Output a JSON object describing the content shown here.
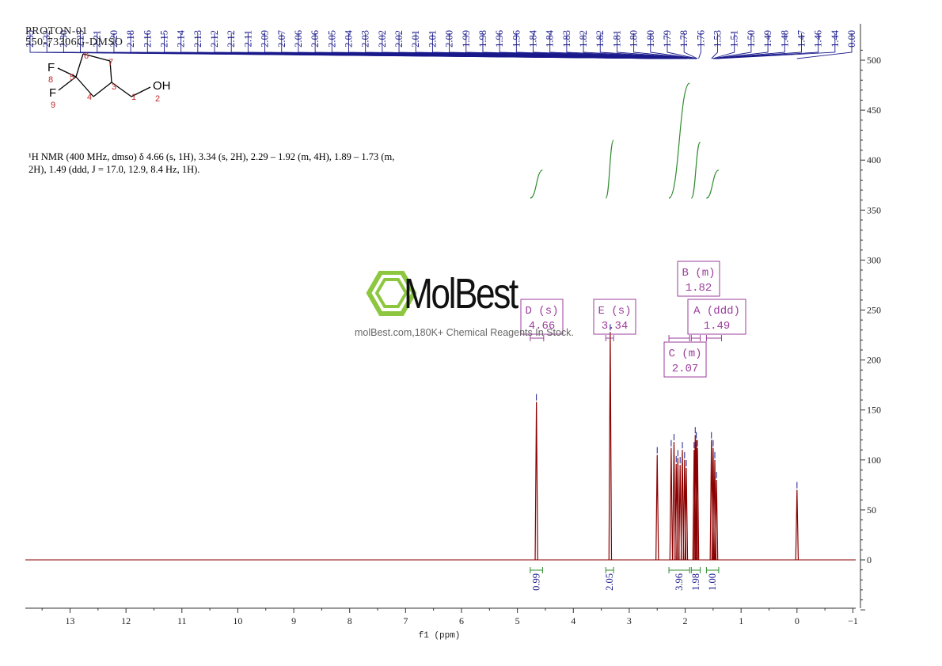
{
  "header": {
    "line1": "PROTON-01",
    "line2": "550-73306G-DMSO"
  },
  "summary": {
    "line1": "¹H NMR (400 MHz, dmso) δ 4.66 (s, 1H), 3.34 (s, 2H), 2.29 – 1.92 (m, 4H), 1.89 – 1.73 (m,",
    "line2": "2H), 1.49 (ddd, J = 17.0, 12.9, 8.4 Hz, 1H)."
  },
  "watermark": {
    "brand": "MolBest",
    "url": "molBest.com,180K+ Chemical Reagents In Stock."
  },
  "structure": {
    "atoms": [
      {
        "label": "F",
        "num": "8"
      },
      {
        "label": "F",
        "num": "9"
      },
      {
        "label": "OH",
        "num": "2"
      }
    ],
    "ring_numbers": [
      "6",
      "7",
      "5",
      "3",
      "4",
      "1"
    ]
  },
  "colors": {
    "spectrum": "#8b0000",
    "integral": "#2e8b2e",
    "peak_labels": "#1a1a8c",
    "multiplet_box": "#9b3d9b",
    "axis": "#333333"
  },
  "chart_data": {
    "type": "line",
    "title": "",
    "xlabel": "f1 (ppm)",
    "ylabel": "",
    "xlim": [
      13.8,
      -1.05
    ],
    "ylim": [
      -50,
      520
    ],
    "x_ticks": [
      "13",
      "12",
      "11",
      "10",
      "9",
      "8",
      "7",
      "6",
      "5",
      "4",
      "3",
      "2",
      "1",
      "0",
      "−1"
    ],
    "x_tick_values": [
      13,
      12,
      11,
      10,
      9,
      8,
      7,
      6,
      5,
      4,
      3,
      2,
      1,
      0,
      -1
    ],
    "y_ticks": [
      "500",
      "450",
      "400",
      "350",
      "300",
      "250",
      "200",
      "150",
      "100",
      "50",
      "0"
    ],
    "y_tick_values": [
      500,
      450,
      400,
      350,
      300,
      250,
      200,
      150,
      100,
      50,
      0
    ],
    "peaks": [
      {
        "ppm": 4.66,
        "height": 158
      },
      {
        "ppm": 3.34,
        "height": 228
      },
      {
        "ppm": 2.5,
        "height": 105
      },
      {
        "ppm": 2.25,
        "height": 112
      },
      {
        "ppm": 2.2,
        "height": 118
      },
      {
        "ppm": 2.16,
        "height": 96
      },
      {
        "ppm": 2.13,
        "height": 102
      },
      {
        "ppm": 2.09,
        "height": 95
      },
      {
        "ppm": 2.05,
        "height": 110
      },
      {
        "ppm": 2.01,
        "height": 100
      },
      {
        "ppm": 1.98,
        "height": 92
      },
      {
        "ppm": 1.84,
        "height": 110
      },
      {
        "ppm": 1.82,
        "height": 125
      },
      {
        "ppm": 1.8,
        "height": 120
      },
      {
        "ppm": 1.78,
        "height": 112
      },
      {
        "ppm": 1.53,
        "height": 120
      },
      {
        "ppm": 1.5,
        "height": 112
      },
      {
        "ppm": 1.47,
        "height": 100
      },
      {
        "ppm": 1.44,
        "height": 80
      },
      {
        "ppm": 0.0,
        "height": 70
      }
    ],
    "peak_labels": [
      "2.33",
      "2.32",
      "2.30",
      "2.23",
      "2.21",
      "2.20",
      "2.18",
      "2.16",
      "2.15",
      "2.14",
      "2.13",
      "2.12",
      "2.12",
      "2.11",
      "2.09",
      "2.07",
      "2.06",
      "2.06",
      "2.05",
      "2.04",
      "2.03",
      "2.02",
      "2.02",
      "2.01",
      "2.01",
      "2.00",
      "1.99",
      "1.98",
      "1.96",
      "1.96",
      "1.84",
      "1.84",
      "1.83",
      "1.82",
      "1.82",
      "1.81",
      "1.80",
      "1.80",
      "1.79",
      "1.78",
      "1.76",
      "1.53",
      "1.51",
      "1.50",
      "1.49",
      "1.48",
      "1.47",
      "1.46",
      "1.44",
      "0.00"
    ],
    "multiplets": [
      {
        "id": "D",
        "type": "s",
        "shift": "4.66",
        "range": [
          4.53,
          4.77
        ]
      },
      {
        "id": "E",
        "type": "s",
        "shift": "3.34",
        "range": [
          3.28,
          3.42
        ]
      },
      {
        "id": "B",
        "type": "m",
        "shift": "1.82",
        "range": [
          1.73,
          1.89
        ]
      },
      {
        "id": "C",
        "type": "m",
        "shift": "2.07",
        "range": [
          1.92,
          2.29
        ]
      },
      {
        "id": "A",
        "type": "ddd",
        "shift": "1.49",
        "range": [
          1.35,
          1.62
        ]
      }
    ],
    "integrals": [
      {
        "value": "0.99",
        "from": 4.77,
        "to": 4.55,
        "curve_low": 362,
        "curve_high": 390
      },
      {
        "value": "2.05",
        "from": 3.42,
        "to": 3.28,
        "curve_low": 362,
        "curve_high": 420
      },
      {
        "value": "3.96",
        "from": 2.29,
        "to": 1.92,
        "curve_low": 362,
        "curve_high": 477
      },
      {
        "value": "1.98",
        "from": 1.89,
        "to": 1.73,
        "curve_low": 362,
        "curve_high": 418
      },
      {
        "value": "1.00",
        "from": 1.62,
        "to": 1.4,
        "curve_low": 362,
        "curve_high": 390
      }
    ]
  }
}
